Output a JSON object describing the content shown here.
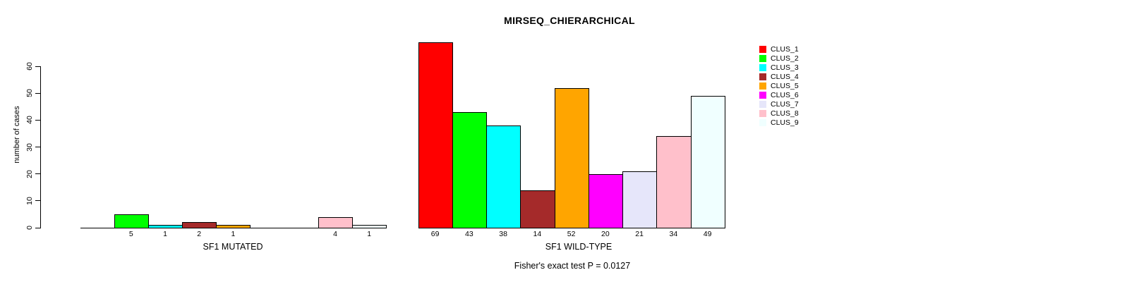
{
  "chart_data": {
    "type": "bar",
    "title": "MIRSEQ_CHIERARCHICAL",
    "ylabel": "number of cases",
    "subtitle": "Fisher's exact test P = 0.0127",
    "yticks": [
      0,
      10,
      20,
      30,
      40,
      50,
      60
    ],
    "ylim": [
      0,
      72
    ],
    "grid": false,
    "legend_position": "right",
    "clusters": [
      {
        "name": "CLUS_1",
        "color": "#FF0000"
      },
      {
        "name": "CLUS_2",
        "color": "#00FF00"
      },
      {
        "name": "CLUS_3",
        "color": "#00FFFF"
      },
      {
        "name": "CLUS_4",
        "color": "#A52A2A"
      },
      {
        "name": "CLUS_5",
        "color": "#FFA500"
      },
      {
        "name": "CLUS_6",
        "color": "#FF00FF"
      },
      {
        "name": "CLUS_7",
        "color": "#E6E6FA"
      },
      {
        "name": "CLUS_8",
        "color": "#FFC0CB"
      },
      {
        "name": "CLUS_9",
        "color": "#F0FFFF"
      }
    ],
    "groups": [
      {
        "label": "SF1 MUTATED",
        "values": [
          0,
          5,
          1,
          2,
          1,
          0,
          0,
          4,
          1
        ]
      },
      {
        "label": "SF1 WILD-TYPE",
        "values": [
          69,
          43,
          38,
          14,
          52,
          20,
          21,
          34,
          49
        ]
      }
    ]
  },
  "colors": {
    "bar_border": "#000000",
    "axis": "#000000",
    "text": "#000000",
    "background": "#FFFFFF"
  }
}
